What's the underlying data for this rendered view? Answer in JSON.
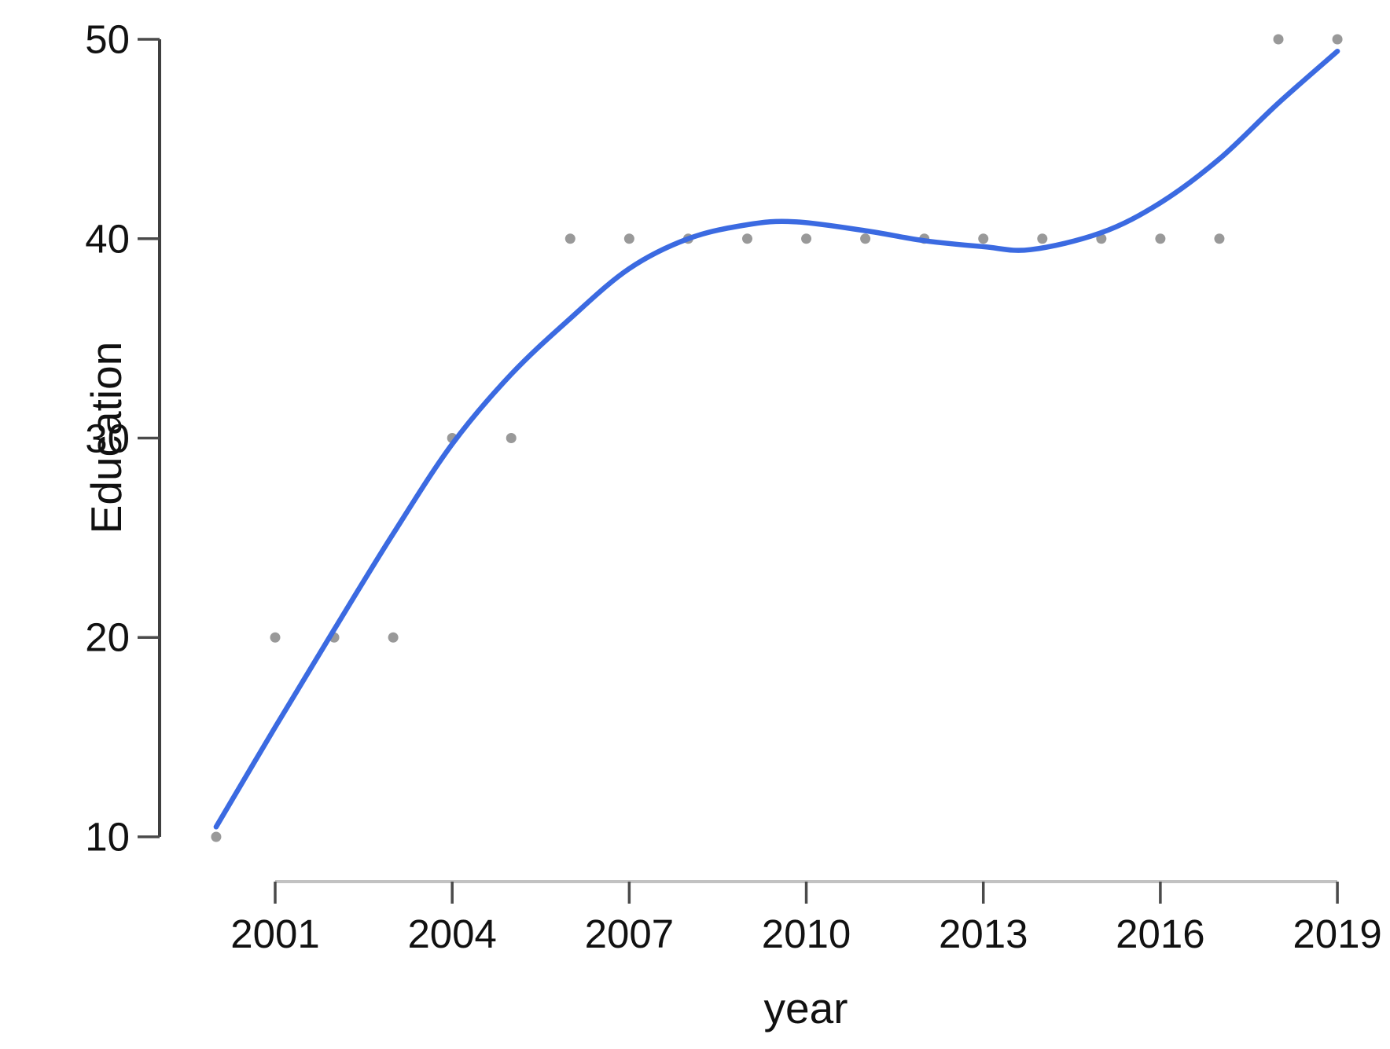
{
  "chart_data": {
    "type": "scatter",
    "title": "",
    "xlabel": "year",
    "ylabel": "Education",
    "x_ticks": [
      2001,
      2004,
      2007,
      2010,
      2013,
      2016,
      2019
    ],
    "y_ticks": [
      10,
      20,
      30,
      40,
      50
    ],
    "xlim": [
      1999.0,
      2019.9
    ],
    "ylim": [
      10,
      50
    ],
    "grid": "off",
    "legend": "none",
    "points": {
      "x": [
        2000,
        2001,
        2002,
        2003,
        2004,
        2005,
        2006,
        2007,
        2008,
        2009,
        2010,
        2011,
        2012,
        2013,
        2014,
        2015,
        2016,
        2017,
        2018,
        2019
      ],
      "y": [
        10,
        20,
        20,
        20,
        30,
        30,
        40,
        40,
        40,
        40,
        40,
        40,
        40,
        40,
        40,
        40,
        40,
        40,
        50,
        50
      ]
    },
    "smoother": {
      "name": "loess-fit-line",
      "x": [
        2000,
        2001,
        2002,
        2003,
        2004,
        2005,
        2006,
        2007,
        2008,
        2009,
        2009.8,
        2011,
        2012,
        2013,
        2013.8,
        2015,
        2016,
        2017,
        2018,
        2019
      ],
      "y": [
        10.5,
        15.5,
        20.4,
        25.2,
        29.7,
        33.2,
        36.0,
        38.5,
        40.0,
        40.7,
        40.85,
        40.4,
        39.9,
        39.6,
        39.45,
        40.3,
        41.8,
        44.0,
        46.8,
        49.4
      ]
    },
    "colors": {
      "line": "#3b6ae1",
      "point": "#999999",
      "y_axis": "#3f3f3f",
      "x_axis_line": "#c2c2c2",
      "tick": "#4a4a4a",
      "text": "#111111"
    }
  }
}
